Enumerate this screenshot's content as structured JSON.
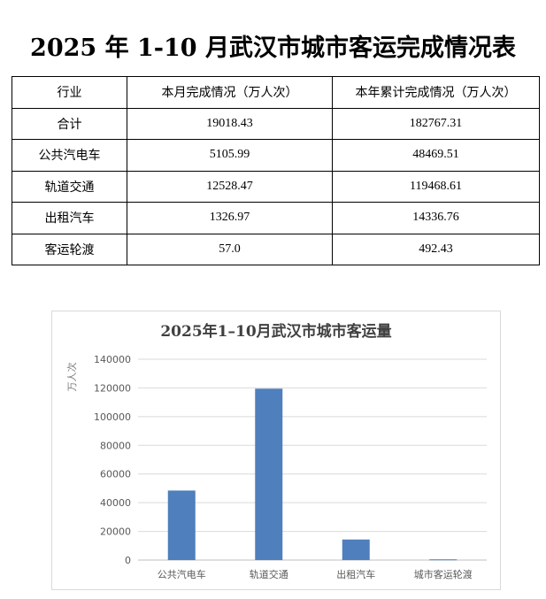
{
  "title": "2025 年 1-10 月武汉市城市客运完成情况表",
  "table": {
    "headers": [
      "行业",
      "本月完成情况（万人次）",
      "本年累计完成情况（万人次）"
    ],
    "rows": [
      [
        "合计",
        "19018.43",
        "182767.31"
      ],
      [
        "公共汽电车",
        "5105.99",
        "48469.51"
      ],
      [
        "轨道交通",
        "12528.47",
        "119468.61"
      ],
      [
        "出租汽车",
        "1326.97",
        "14336.76"
      ],
      [
        "客运轮渡",
        "57.0",
        "492.43"
      ]
    ]
  },
  "chart_data": {
    "type": "bar",
    "title": "2025年1–10月武汉市城市客运量",
    "ylabel": "万人次",
    "xlabel": "",
    "categories": [
      "公共汽电车",
      "轨道交通",
      "出租汽车",
      "城市客运轮渡"
    ],
    "values": [
      48469.51,
      119468.61,
      14336.76,
      492.43
    ],
    "ylim": [
      0,
      140000
    ],
    "yticks": [
      "0",
      "20000",
      "40000",
      "60000",
      "80000",
      "100000",
      "120000",
      "140000"
    ],
    "grid": true,
    "bar_color": "#4f7fbd"
  }
}
